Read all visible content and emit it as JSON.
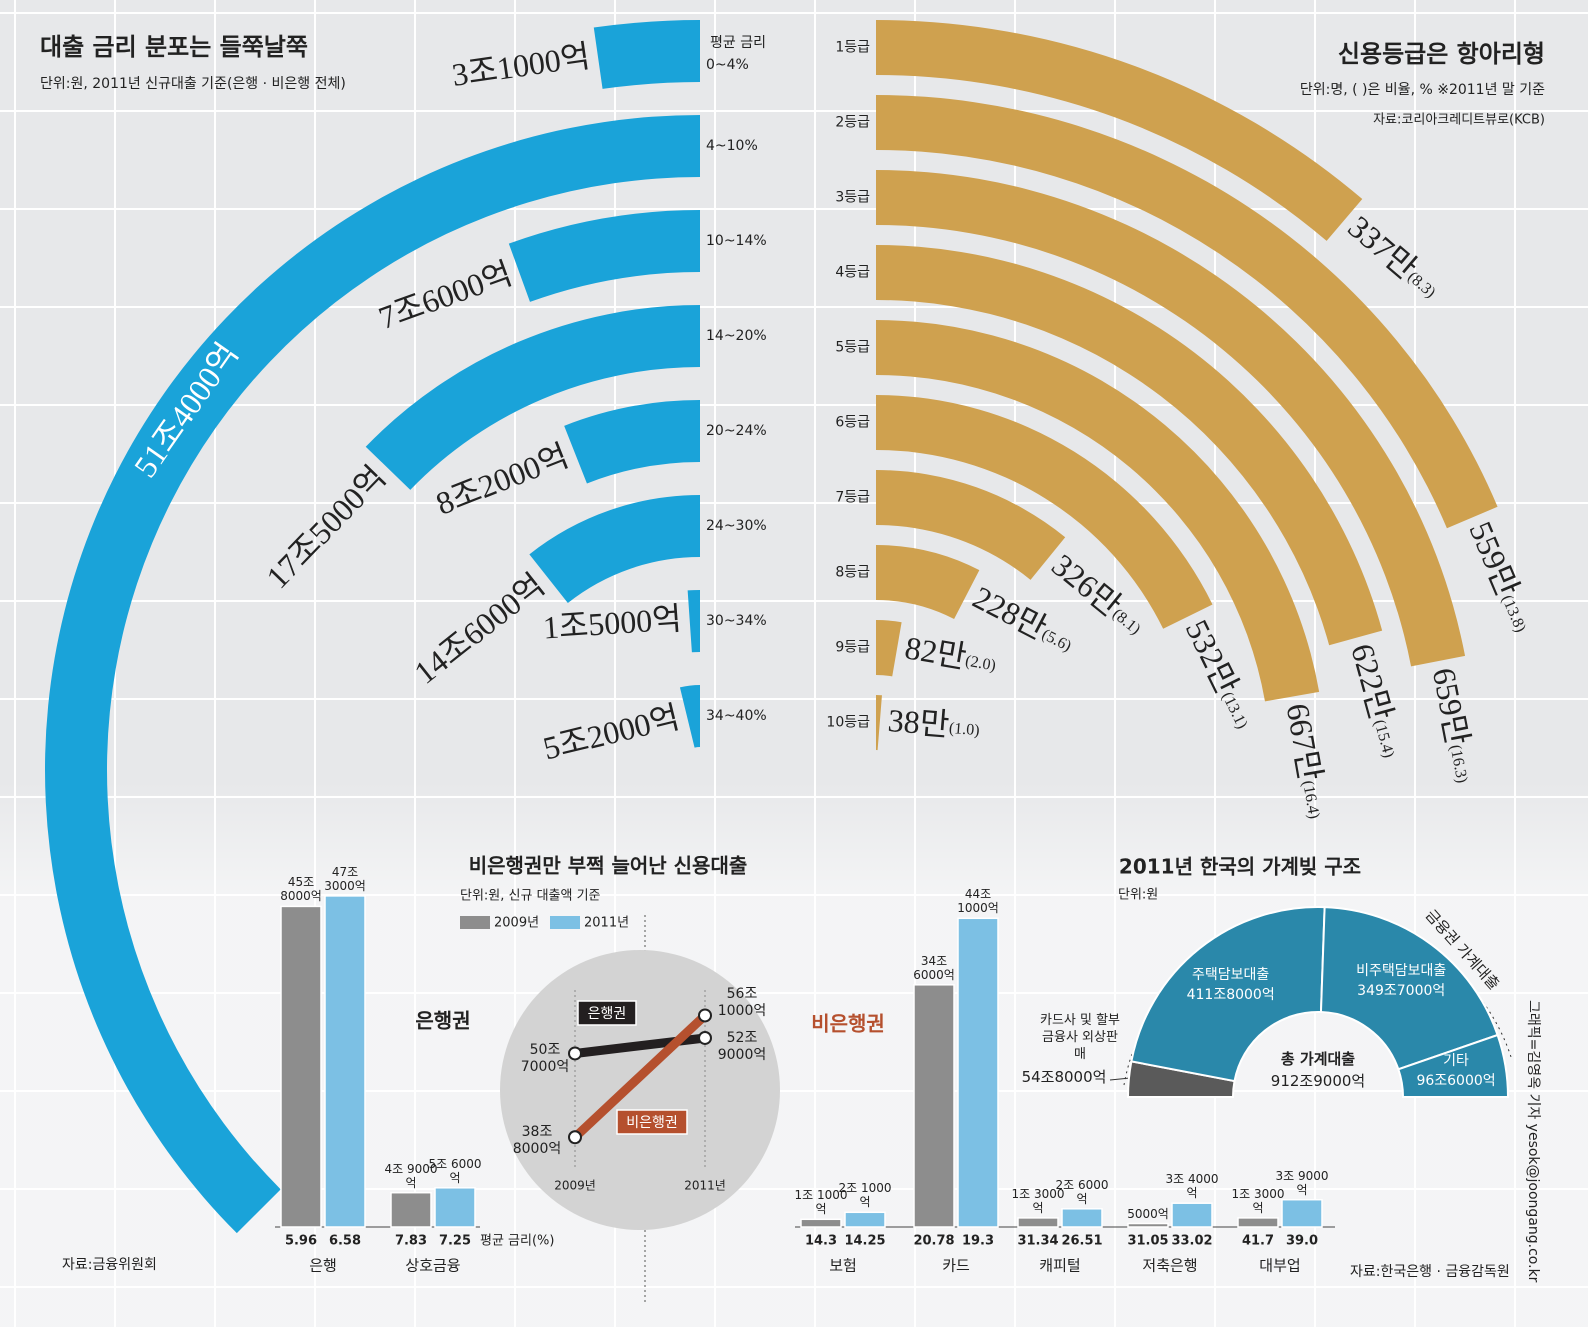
{
  "chart_data": [
    {
      "type": "radial-bar",
      "side": "left",
      "title": "대출 금리 분포는 들쭉날쭉",
      "subtitle": "단위:원, 2011년 신규대출 기준(은행 · 비은행 전체)",
      "source": "자료:금융위원회",
      "axis_label": "평균 금리",
      "categories": [
        "0~4%",
        "4~10%",
        "10~14%",
        "14~20%",
        "20~24%",
        "24~30%",
        "30~34%",
        "34~40%"
      ],
      "values": [
        31000,
        514000,
        76000,
        175000,
        82000,
        146000,
        15000,
        52000
      ],
      "value_labels": [
        "3조1000억",
        "51조4000억",
        "7조6000억",
        "17조5000억",
        "8조2000억",
        "14조6000억",
        "1조5000억",
        "5조2000억"
      ],
      "color": "#1aa3d9"
    },
    {
      "type": "radial-bar",
      "side": "right",
      "title": "신용등급은 항아리형",
      "subtitle": "단위:명, ( )은 비율, %   ※2011년 말 기준",
      "source": "자료:코리아크레디트뷰로(KCB)",
      "categories": [
        "1등급",
        "2등급",
        "3등급",
        "4등급",
        "5등급",
        "6등급",
        "7등급",
        "8등급",
        "9등급",
        "10등급"
      ],
      "values": [
        337,
        559,
        659,
        622,
        667,
        532,
        326,
        228,
        82,
        38
      ],
      "value_labels": [
        "337만",
        "559만",
        "659만",
        "622만",
        "667만",
        "532만",
        "326만",
        "228만",
        "82만",
        "38만"
      ],
      "shares": [
        8.3,
        13.8,
        16.3,
        15.4,
        16.4,
        13.1,
        8.1,
        5.6,
        2.0,
        1.0
      ],
      "share_labels": [
        "(8.3)",
        "(13.8)",
        "(16.3)",
        "(15.4)",
        "(16.4)",
        "(13.1)",
        "(8.1)",
        "(5.6)",
        "(2.0)",
        "(1.0)"
      ],
      "color": "#cfa14f"
    },
    {
      "type": "bar",
      "title": "비은행권만 부쩍 늘어난 신용대출",
      "subtitle": "단위:원, 신규 대출액 기준",
      "annotations": [
        "은행권",
        "비은행권"
      ],
      "rate_label": "평균 금리(%)",
      "categories": [
        "은행",
        "상호금융",
        "보험",
        "카드",
        "캐피털",
        "저축은행",
        "대부업"
      ],
      "ylim": [
        0,
        500000
      ],
      "series": [
        {
          "name": "2009년",
          "color": "#8d8d8d",
          "values": [
            458000,
            49000,
            11000,
            346000,
            13000,
            5000,
            13000
          ],
          "value_labels": [
            "45조 8000억",
            "4조 9000억",
            "1조 1000억",
            "34조 6000억",
            "1조 3000억",
            "5000억",
            "1조 3000억"
          ],
          "rates": [
            5.96,
            7.83,
            14.3,
            20.78,
            31.34,
            31.05,
            41.7
          ]
        },
        {
          "name": "2011년",
          "color": "#7cc0e4",
          "values": [
            473000,
            56000,
            21000,
            441000,
            26000,
            34000,
            39000
          ],
          "value_labels": [
            "47조 3000억",
            "5조 6000억",
            "2조 1000억",
            "44조 1000억",
            "2조 6000억",
            "3조 4000억",
            "3조 9000억"
          ],
          "rates": [
            6.58,
            7.25,
            14.25,
            19.3,
            26.51,
            33.02,
            {
              "value": 39.0,
              "label": "39.0"
            }
          ]
        }
      ]
    },
    {
      "type": "line",
      "categories": [
        "2009년",
        "2011년"
      ],
      "ylim": [
        350000,
        600000
      ],
      "series": [
        {
          "name": "은행권",
          "color": "#231f20",
          "values": [
            507000,
            529000
          ],
          "value_labels": [
            "50조 7000억",
            "52조 9000억"
          ]
        },
        {
          "name": "비은행권",
          "color": "#b5502e",
          "values": [
            388000,
            561000
          ],
          "value_labels": [
            "38조 8000억",
            "56조 1000억"
          ]
        }
      ]
    },
    {
      "type": "pie",
      "shape": "semi-donut",
      "title": "2011년 한국의 가계빚 구조",
      "subtitle": "단위:원",
      "annotation": "금융권 가계대출",
      "source": "자료:한국은행 · 금융감독원",
      "center_label": "총 가계대출",
      "total": {
        "value": 9129000,
        "label": "912조9000억"
      },
      "categories": [
        "카드사 및 할부금융사 외상판매",
        "주택담보대출",
        "비주택담보대출",
        "기타"
      ],
      "values": [
        548000,
        4118000,
        3497000,
        966000
      ],
      "value_labels": [
        "54조8000억",
        "411조8000억",
        "349조7000억",
        "96조6000억"
      ],
      "colors": [
        "#5a5a5a",
        "#2a88aa",
        "#2a88aa",
        "#2a88aa"
      ]
    }
  ],
  "credit": "그래픽=김영옥 기자 yesok@joongang.co.kr"
}
